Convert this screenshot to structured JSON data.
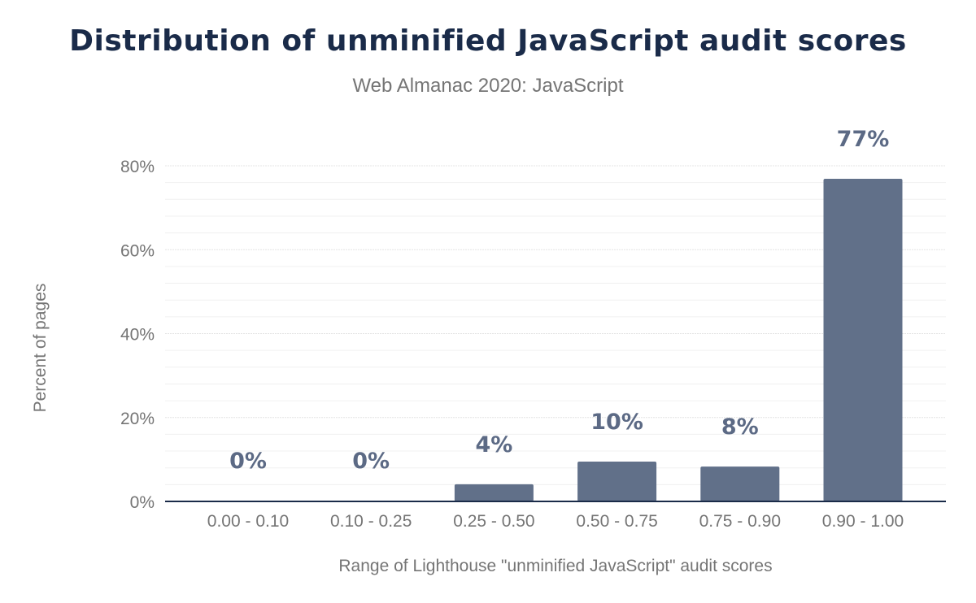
{
  "chart_data": {
    "type": "bar",
    "title": "Distribution of unminified JavaScript audit scores",
    "subtitle": "Web Almanac 2020: JavaScript",
    "xlabel": "Range of Lighthouse \"unminified JavaScript\" audit scores",
    "ylabel": "Percent of pages",
    "categories": [
      "0.00 - 0.10",
      "0.10 - 0.25",
      "0.25 - 0.50",
      "0.50 - 0.75",
      "0.75 - 0.90",
      "0.90 - 1.00"
    ],
    "values": [
      0.2,
      0.2,
      4.1,
      9.5,
      8.3,
      76.9
    ],
    "data_labels": [
      "0%",
      "0%",
      "4%",
      "10%",
      "8%",
      "77%"
    ],
    "ylim": [
      0,
      80
    ],
    "yticks": [
      "0%",
      "20%",
      "40%",
      "60%",
      "80%"
    ],
    "grid": true,
    "bar_color": "#617089",
    "label_color": "#5c6a85"
  }
}
